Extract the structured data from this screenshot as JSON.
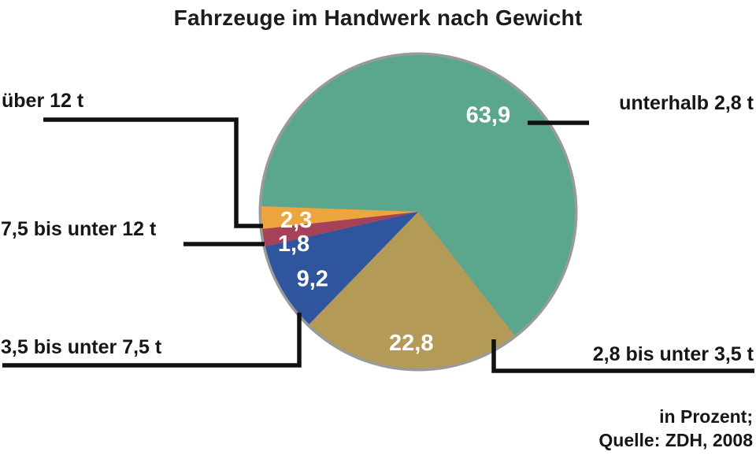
{
  "title": "Fahrzeuge im Handwerk nach Gewicht",
  "footer": {
    "line1": "in Prozent;",
    "line2": "Quelle: ZDH, 2008"
  },
  "chart_data": {
    "type": "pie",
    "title": "Fahrzeuge im Handwerk nach Gewicht",
    "unit": "Prozent",
    "source": "ZDH, 2008",
    "direction": "clockwise",
    "start_angle_deg": 182,
    "rim_color": "#9a9a9a",
    "leader_color": "#111111",
    "slices": [
      {
        "label": "unterhalb 2,8 t",
        "value": 63.9,
        "value_label": "63,9",
        "color": "#5ba78e",
        "label_angle": 306,
        "label_r": 0.76
      },
      {
        "label": "2,8 bis unter 3,5 t",
        "value": 22.8,
        "value_label": "22,8",
        "color": "#b39a57",
        "label_angle": 93,
        "label_r": 0.84
      },
      {
        "label": "3,5 bis unter 7,5 t",
        "value": 9.2,
        "value_label": "9,2",
        "color": "#30559f",
        "label_angle": 147.5,
        "label_r": 0.8
      },
      {
        "label": "7,5 bis unter 12 t",
        "value": 1.8,
        "value_label": "1,8",
        "color": "#a64158",
        "label_angle": 165.5,
        "label_r": 0.82
      },
      {
        "label": "über 12 t",
        "value": 2.3,
        "value_label": "2,3",
        "color": "#eda63d",
        "label_angle": 176,
        "label_r": 0.78
      }
    ]
  }
}
